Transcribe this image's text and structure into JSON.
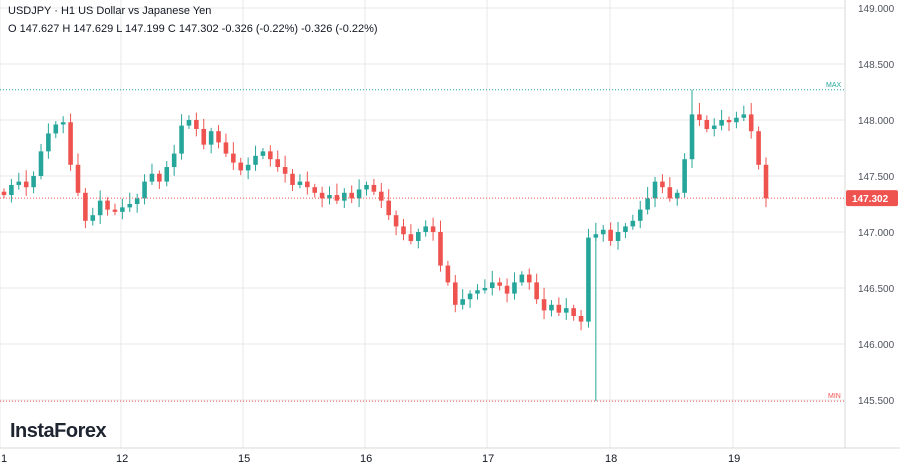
{
  "header": {
    "line1": "USDJPY · H1 US Dollar vs Japanese Yen",
    "line2": "O 147.627 H 147.629 L 147.199 C 147.302 -0.326 (-0.22%) -0.326 (-0.22%)"
  },
  "logo": "InstaForex",
  "colors": {
    "up": "#26a69a",
    "down": "#ef5350",
    "grid": "#e8e8e8",
    "axis_text": "#50535e"
  },
  "chart_data": {
    "type": "candlestick",
    "symbol": "USDJPY",
    "timeframe": "H1",
    "ylim": [
      145.45,
      149.0
    ],
    "y_ticks": [
      "149.000",
      "148.500",
      "148.000",
      "147.500",
      "147.000",
      "146.500",
      "146.000",
      "145.500"
    ],
    "x_ticks": [
      "1",
      "12",
      "15",
      "16",
      "17",
      "18",
      "19"
    ],
    "last_price": "147.302",
    "max_label": "MAX",
    "min_label": "MIN",
    "max_value": 148.27,
    "min_value": 145.49,
    "close_path": [
      147.33,
      147.42,
      147.45,
      147.4,
      147.5,
      147.72,
      147.88,
      147.96,
      147.98,
      147.6,
      147.35,
      147.1,
      147.15,
      147.28,
      147.2,
      147.18,
      147.22,
      147.25,
      147.3,
      147.45,
      147.52,
      147.45,
      147.58,
      147.7,
      147.95,
      148.0,
      147.92,
      147.78,
      147.9,
      147.8,
      147.7,
      147.62,
      147.55,
      147.6,
      147.68,
      147.72,
      147.65,
      147.58,
      147.52,
      147.42,
      147.45,
      147.4,
      147.35,
      147.3,
      147.33,
      147.28,
      147.35,
      147.3,
      147.38,
      147.42,
      147.36,
      147.28,
      147.15,
      147.05,
      146.98,
      146.92,
      147.0,
      147.05,
      147.0,
      146.7,
      146.55,
      146.35,
      146.4,
      146.45,
      146.48,
      146.5,
      146.55,
      146.52,
      146.45,
      146.55,
      146.62,
      146.55,
      146.4,
      146.3,
      146.35,
      146.28,
      146.32,
      146.25,
      146.2,
      146.95,
      146.98,
      147.02,
      146.92,
      147.0,
      147.05,
      147.1,
      147.2,
      147.3,
      147.45,
      147.4,
      147.3,
      147.35,
      147.65,
      148.05,
      148.0,
      147.92,
      147.95,
      148.0,
      147.98,
      148.02,
      148.05,
      147.9,
      147.6,
      147.3
    ]
  }
}
